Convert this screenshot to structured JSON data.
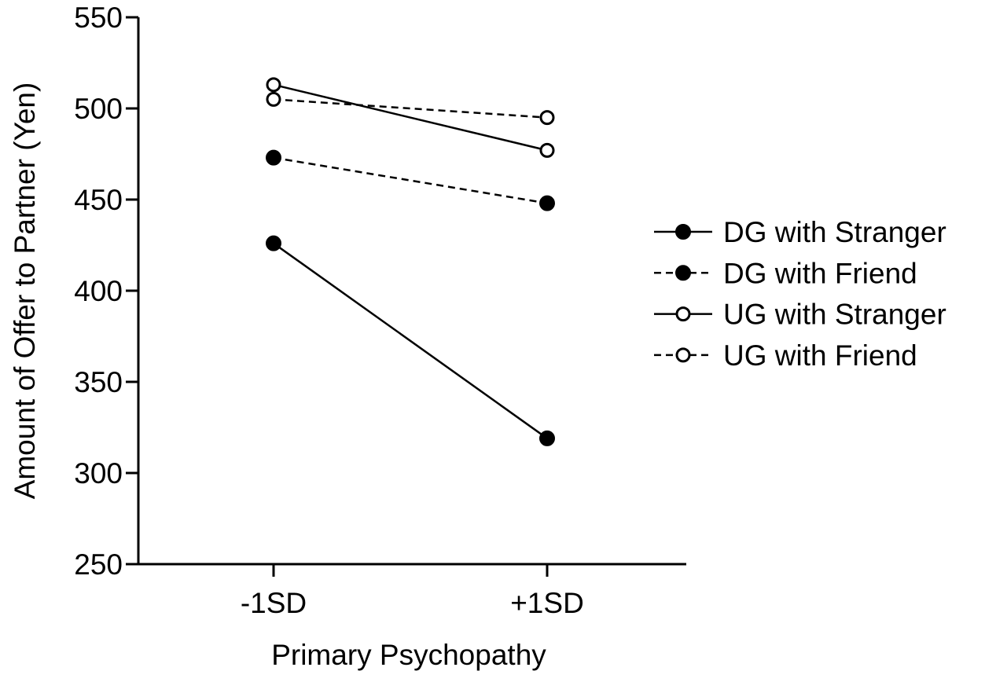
{
  "chart_data": {
    "type": "line",
    "title": "",
    "xlabel": "Primary Psychopathy",
    "ylabel": "Amount of Offer to Partner (Yen)",
    "categories": [
      "-1SD",
      "+1SD"
    ],
    "ylim": [
      250,
      550
    ],
    "yticks": [
      250,
      300,
      350,
      400,
      450,
      500,
      550
    ],
    "grid": false,
    "legend_position": "right",
    "series": [
      {
        "name": "DG with Stranger",
        "values": [
          426,
          319
        ],
        "marker": "filled-circle",
        "line": "solid",
        "color": "#000000"
      },
      {
        "name": "DG with Friend",
        "values": [
          473,
          448
        ],
        "marker": "filled-circle",
        "line": "dashed",
        "color": "#000000"
      },
      {
        "name": "UG with Stranger",
        "values": [
          513,
          477
        ],
        "marker": "open-circle",
        "line": "solid",
        "color": "#000000"
      },
      {
        "name": "UG with Friend",
        "values": [
          505,
          495
        ],
        "marker": "open-circle",
        "line": "dashed",
        "color": "#000000"
      }
    ]
  }
}
